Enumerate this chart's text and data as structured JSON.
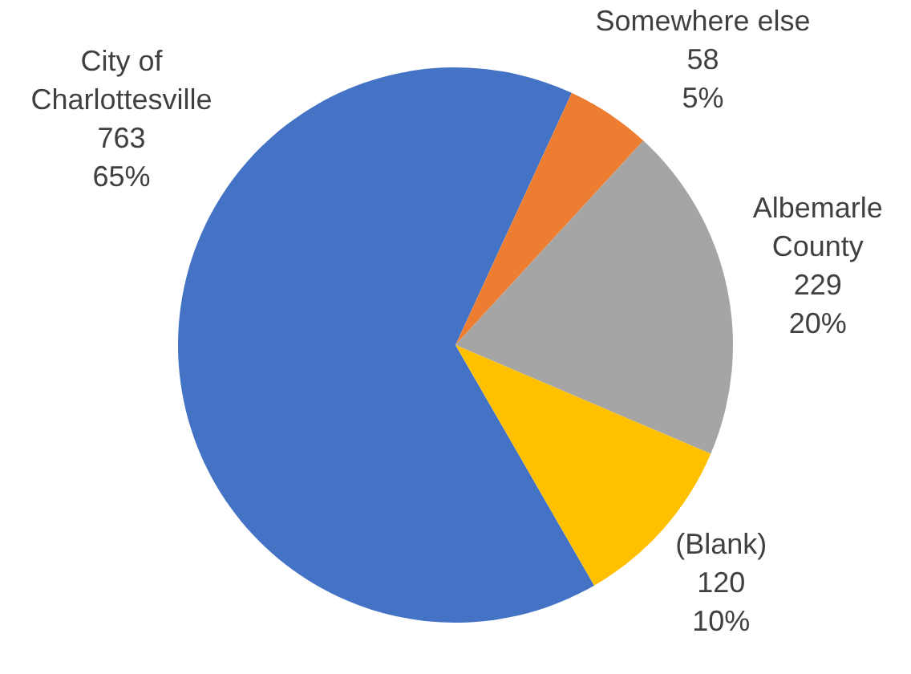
{
  "chart_data": {
    "type": "pie",
    "categories": [
      "City of Charlottesville",
      "Somewhere else",
      "Albemarle County",
      "(Blank)"
    ],
    "values": [
      763,
      58,
      229,
      120
    ],
    "colors": [
      "#4472c4",
      "#ed7d31",
      "#a5a5a5",
      "#ffc000"
    ],
    "value_labels": [
      "763\n65%",
      "58\n5%",
      "229\n20%",
      "120\n10%"
    ]
  }
}
